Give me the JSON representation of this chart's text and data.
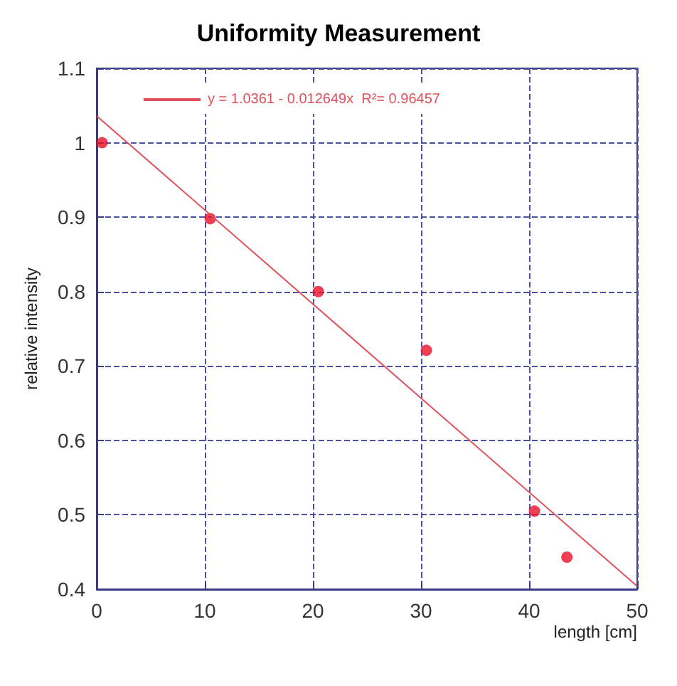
{
  "chart_data": {
    "type": "scatter",
    "title": "Uniformity Measurement",
    "xlabel": "length [cm]",
    "ylabel": "relative intensity",
    "xlim": [
      0,
      50
    ],
    "xticks": [
      0,
      10,
      20,
      30,
      40,
      50
    ],
    "ylim": [
      0.4,
      1.1
    ],
    "yticks": [
      0.4,
      0.5,
      0.6,
      0.7,
      0.8,
      0.9,
      1,
      1.1
    ],
    "grid": true,
    "legend": "top left",
    "series": [
      {
        "color": "#e8102a",
        "marker": "circle",
        "x": [
          0.5,
          10.5,
          20.5,
          30.5,
          40.5,
          43.5
        ],
        "values": [
          1.0,
          0.898,
          0.8,
          0.721,
          0.505,
          0.443
        ]
      },
      {
        "type": "line",
        "name": "y = 1.0361 - 0.012649x  R²= 0.96457",
        "color": "#e0505a",
        "marker": "none",
        "line_style": "solid",
        "x": [
          0,
          50
        ],
        "values": [
          1.036,
          0.404
        ]
      }
    ]
  }
}
